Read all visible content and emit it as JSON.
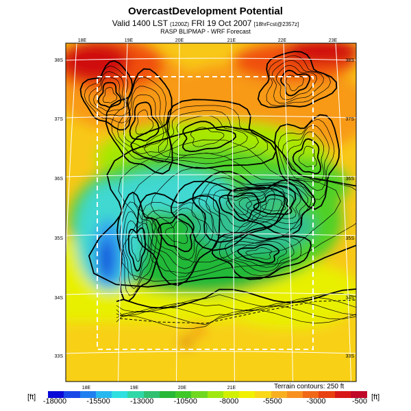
{
  "title": "OvercastDevelopment Potential",
  "subtitle": {
    "prefix": "Valid 1400 LST",
    "zulu": "(1200Z)",
    "date": "FRI 19 Oct 2007",
    "run": "[18hrFcst@2357z]"
  },
  "source": "RASP BLIPMAP - WRF Forecast",
  "map": {
    "top_labels": [
      "18E",
      "19E",
      "20E",
      "21E",
      "22E",
      "23E"
    ],
    "bottom_labels": [
      "18E",
      "19E",
      "20E",
      "21E"
    ],
    "left_labels": [
      "33S",
      "34S",
      "35S",
      "36S",
      "37S",
      "38S"
    ],
    "right_labels": [
      "33S",
      "34S",
      "35S",
      "36S",
      "37S",
      "38S"
    ],
    "field_colors": [
      "#d01010",
      "#f05010",
      "#f89a18",
      "#f8d018",
      "#e8f000",
      "#a8e800",
      "#50d028",
      "#20b838",
      "#30c090",
      "#40d8d0",
      "#30a0f0",
      "#1048d8"
    ]
  },
  "terrain_note": "Terrain contours: 250 ft",
  "colorbar": {
    "unit_left": "[ft]",
    "unit_right": "[ft]",
    "labels": [
      "-18000",
      "-15500",
      "-13000",
      "-10500",
      "-8000",
      "-5500",
      "-3000",
      "-500"
    ],
    "colors": [
      "#0a0ad8",
      "#1848e8",
      "#2080f0",
      "#28b8f0",
      "#30e0e0",
      "#30d8a8",
      "#30c070",
      "#28b838",
      "#40c828",
      "#70d820",
      "#a0e810",
      "#d0f000",
      "#f0f000",
      "#f8d818",
      "#f8b020",
      "#f89020",
      "#f06818",
      "#e84010",
      "#d81818",
      "#c00828"
    ]
  }
}
